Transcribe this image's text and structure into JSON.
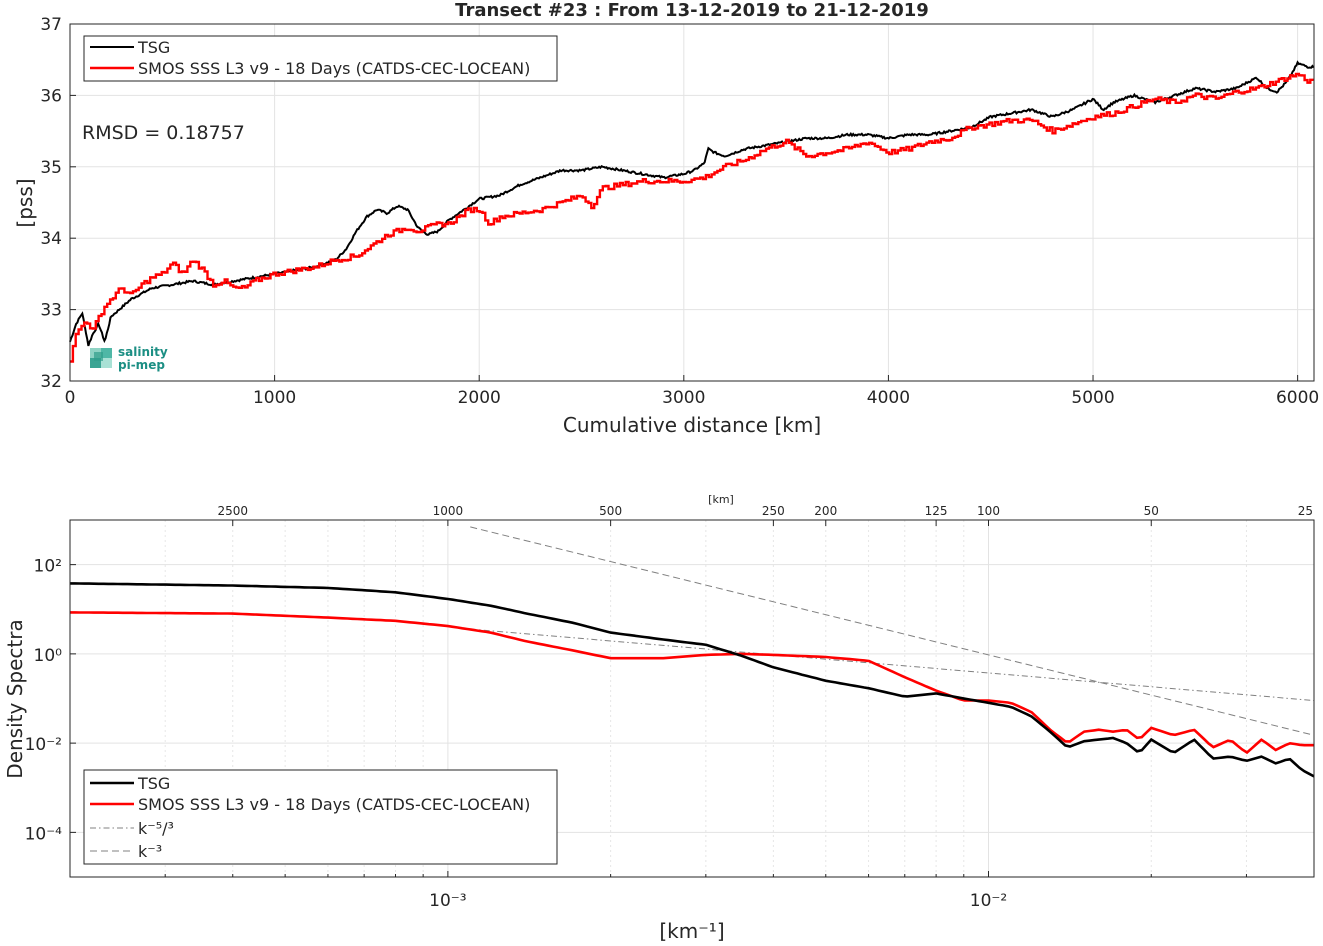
{
  "chart_data": [
    {
      "type": "line",
      "title": "Transect #23 : From 13-12-2019 to 21-12-2019",
      "xlabel": "Cumulative distance [km]",
      "ylabel": "[pss]",
      "xlim": [
        0,
        6080
      ],
      "ylim": [
        32,
        37
      ],
      "xticks": [
        0,
        1000,
        2000,
        3000,
        4000,
        5000,
        6000
      ],
      "yticks": [
        32,
        33,
        34,
        35,
        36,
        37
      ],
      "grid": true,
      "legend_position": "top-left",
      "annotation": "RMSD = 0.18757",
      "logo_text": [
        "salinity",
        "pi-mep"
      ],
      "series": [
        {
          "name": "TSG",
          "color": "#000000",
          "x": [
            0,
            30,
            60,
            90,
            110,
            140,
            170,
            200,
            300,
            400,
            500,
            600,
            700,
            800,
            900,
            1000,
            1100,
            1200,
            1300,
            1350,
            1400,
            1450,
            1500,
            1550,
            1600,
            1650,
            1700,
            1750,
            1800,
            1850,
            1900,
            1950,
            2000,
            2100,
            2200,
            2300,
            2400,
            2500,
            2600,
            2700,
            2800,
            2900,
            3000,
            3050,
            3100,
            3120,
            3150,
            3200,
            3300,
            3400,
            3500,
            3600,
            3700,
            3800,
            3900,
            4000,
            4100,
            4200,
            4300,
            4400,
            4500,
            4600,
            4700,
            4800,
            4900,
            5000,
            5050,
            5100,
            5200,
            5300,
            5400,
            5500,
            5600,
            5700,
            5800,
            5850,
            5900,
            5950,
            6000,
            6050,
            6080
          ],
          "y": [
            32.55,
            32.8,
            32.95,
            32.5,
            32.65,
            32.8,
            32.55,
            32.9,
            33.15,
            33.3,
            33.35,
            33.4,
            33.35,
            33.4,
            33.45,
            33.5,
            33.55,
            33.6,
            33.7,
            33.85,
            34.1,
            34.3,
            34.4,
            34.35,
            34.45,
            34.4,
            34.15,
            34.05,
            34.1,
            34.25,
            34.35,
            34.45,
            34.55,
            34.6,
            34.75,
            34.85,
            34.95,
            34.95,
            35.0,
            34.95,
            34.9,
            34.85,
            34.9,
            34.95,
            35.05,
            35.25,
            35.2,
            35.15,
            35.25,
            35.3,
            35.35,
            35.4,
            35.4,
            35.45,
            35.45,
            35.4,
            35.45,
            35.45,
            35.5,
            35.55,
            35.7,
            35.75,
            35.8,
            35.7,
            35.8,
            35.95,
            35.8,
            35.9,
            36.0,
            35.9,
            36.0,
            36.1,
            36.05,
            36.1,
            36.25,
            36.1,
            36.05,
            36.2,
            36.45,
            36.4,
            36.4
          ]
        },
        {
          "name": "SMOS SSS L3 v9 - 18 Days (CATDS-CEC-LOCEAN)",
          "color": "#ff0000",
          "x": [
            0,
            20,
            50,
            80,
            110,
            140,
            170,
            200,
            250,
            300,
            350,
            400,
            450,
            500,
            550,
            600,
            650,
            700,
            750,
            800,
            850,
            900,
            950,
            1000,
            1100,
            1200,
            1300,
            1400,
            1500,
            1550,
            1600,
            1650,
            1700,
            1750,
            1800,
            1850,
            1900,
            1950,
            2000,
            2050,
            2100,
            2200,
            2300,
            2400,
            2500,
            2550,
            2600,
            2700,
            2800,
            2900,
            3000,
            3100,
            3200,
            3300,
            3400,
            3500,
            3600,
            3700,
            3800,
            3900,
            4000,
            4100,
            4200,
            4300,
            4400,
            4500,
            4600,
            4700,
            4800,
            4900,
            5000,
            5100,
            5200,
            5300,
            5400,
            5500,
            5600,
            5700,
            5800,
            5900,
            5950,
            6000,
            6050,
            6080
          ],
          "y": [
            32.3,
            32.6,
            32.75,
            32.85,
            32.7,
            32.9,
            33.05,
            33.15,
            33.3,
            33.2,
            33.35,
            33.45,
            33.5,
            33.65,
            33.5,
            33.7,
            33.55,
            33.35,
            33.4,
            33.3,
            33.3,
            33.4,
            33.45,
            33.5,
            33.55,
            33.6,
            33.7,
            33.75,
            33.95,
            34.05,
            34.1,
            34.15,
            34.1,
            34.15,
            34.2,
            34.2,
            34.3,
            34.4,
            34.4,
            34.2,
            34.3,
            34.35,
            34.4,
            34.5,
            34.6,
            34.45,
            34.7,
            34.75,
            34.8,
            34.8,
            34.8,
            34.85,
            35.0,
            35.1,
            35.25,
            35.35,
            35.15,
            35.2,
            35.25,
            35.35,
            35.2,
            35.25,
            35.35,
            35.4,
            35.55,
            35.6,
            35.65,
            35.65,
            35.5,
            35.6,
            35.7,
            35.75,
            35.85,
            35.95,
            35.9,
            36.0,
            35.95,
            36.05,
            36.1,
            36.2,
            36.25,
            36.3,
            36.2,
            36.2
          ]
        }
      ]
    },
    {
      "type": "line",
      "xlabel": "[km⁻¹]",
      "ylabel": "Density Spectra",
      "top_axis_label": "[km]",
      "xscale": "log",
      "yscale": "log",
      "xlim": [
        0.0002,
        0.04
      ],
      "ylim": [
        1e-05,
        1000
      ],
      "xticks": [
        0.001,
        0.01
      ],
      "xtick_labels": [
        "10⁻³",
        "10⁻²"
      ],
      "yticks": [
        0.0001,
        0.01,
        1,
        100
      ],
      "ytick_labels": [
        "10⁻⁴",
        "10⁻²",
        "10⁰",
        "10²"
      ],
      "top_ticks_km": [
        2500,
        1000,
        500,
        250,
        200,
        125,
        100,
        50,
        25
      ],
      "grid": true,
      "legend_position": "bottom-left",
      "series": [
        {
          "name": "TSG",
          "color": "#000000",
          "x": [
            0.0002,
            0.0004,
            0.0006,
            0.0008,
            0.001,
            0.0012,
            0.0014,
            0.0017,
            0.002,
            0.0025,
            0.003,
            0.0035,
            0.004,
            0.005,
            0.006,
            0.007,
            0.008,
            0.009,
            0.01,
            0.011,
            0.012,
            0.013,
            0.014,
            0.015,
            0.016,
            0.017,
            0.018,
            0.019,
            0.02,
            0.022,
            0.024,
            0.026,
            0.028,
            0.03,
            0.032,
            0.034,
            0.036,
            0.038,
            0.04
          ],
          "y": [
            38,
            34,
            30,
            24,
            17,
            12,
            8,
            5,
            3,
            2.1,
            1.6,
            0.9,
            0.5,
            0.25,
            0.17,
            0.11,
            0.13,
            0.1,
            0.08,
            0.065,
            0.04,
            0.018,
            0.008,
            0.011,
            0.012,
            0.013,
            0.01,
            0.006,
            0.012,
            0.006,
            0.012,
            0.0045,
            0.005,
            0.004,
            0.005,
            0.0035,
            0.0045,
            0.0025,
            0.0018
          ]
        },
        {
          "name": "SMOS SSS L3 v9 - 18 Days (CATDS-CEC-LOCEAN)",
          "color": "#ff0000",
          "x": [
            0.0002,
            0.0004,
            0.0006,
            0.0008,
            0.001,
            0.0012,
            0.0014,
            0.0017,
            0.002,
            0.0025,
            0.003,
            0.0035,
            0.004,
            0.005,
            0.006,
            0.007,
            0.008,
            0.009,
            0.01,
            0.011,
            0.012,
            0.013,
            0.014,
            0.015,
            0.016,
            0.017,
            0.018,
            0.019,
            0.02,
            0.022,
            0.024,
            0.026,
            0.028,
            0.03,
            0.032,
            0.034,
            0.036,
            0.038,
            0.04
          ],
          "y": [
            8.5,
            8,
            6.5,
            5.5,
            4.2,
            3,
            1.9,
            1.2,
            0.8,
            0.8,
            0.95,
            1.0,
            0.95,
            0.85,
            0.7,
            0.3,
            0.15,
            0.09,
            0.09,
            0.08,
            0.05,
            0.02,
            0.01,
            0.018,
            0.02,
            0.018,
            0.02,
            0.012,
            0.022,
            0.015,
            0.02,
            0.008,
            0.012,
            0.006,
            0.012,
            0.007,
            0.01,
            0.009,
            0.009
          ]
        },
        {
          "name": "k⁻⁵/³",
          "color": "#808080",
          "style": "dash-dot",
          "x": [
            0.0011,
            0.04
          ],
          "y": [
            3.6,
            0.09
          ]
        },
        {
          "name": "k⁻³",
          "color": "#808080",
          "style": "dashed",
          "x": [
            0.0011,
            0.04
          ],
          "y": [
            700,
            0.015
          ]
        }
      ]
    }
  ]
}
